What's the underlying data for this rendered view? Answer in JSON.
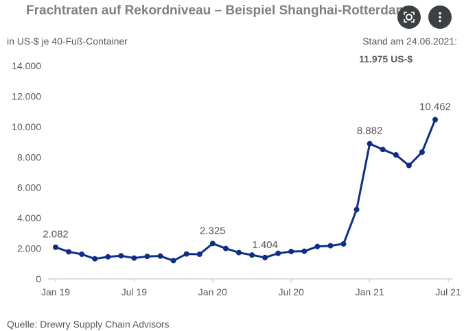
{
  "title": "Frachtraten auf Rekordniveau – Beispiel Shanghai-Rotterdam",
  "subtitle_left": "in US-$ je 40-Fuß-Container",
  "subtitle_right": "Stand am 24.06.2021:",
  "subtitle_right_value": "11.975 US-$",
  "source": "Quelle: Drewry Supply Chain Advisors",
  "colors": {
    "line": "#0d2d8a",
    "text": "#595959",
    "title": "#808080",
    "overlay_button": "#3c4043"
  },
  "icons": {
    "search": "lens-search-icon",
    "more": "more-vertical-icon"
  },
  "chart_data": {
    "type": "line",
    "ylim": [
      0,
      14000
    ],
    "yticks": [
      0,
      2000,
      4000,
      6000,
      8000,
      10000,
      12000,
      14000
    ],
    "ytick_labels": [
      "0",
      "2.000",
      "4.000",
      "6.000",
      "8.000",
      "10.000",
      "12.000",
      "14.000"
    ],
    "xtick_labels": [
      "Jan 19",
      "Jul 19",
      "Jan 20",
      "Jul 20",
      "Jan 21",
      "Jul 21"
    ],
    "grid": false,
    "series": [
      {
        "values": [
          2082,
          1780,
          1620,
          1320,
          1450,
          1520,
          1370,
          1480,
          1500,
          1200,
          1640,
          1620,
          2325,
          2000,
          1730,
          1570,
          1404,
          1680,
          1800,
          1820,
          2130,
          2180,
          2300,
          4560,
          8882,
          8500,
          8150,
          7450,
          8330,
          10462
        ]
      }
    ],
    "data_labels": [
      {
        "index": 0,
        "text": "2.082"
      },
      {
        "index": 12,
        "text": "2.325"
      },
      {
        "index": 16,
        "text": "1.404"
      },
      {
        "index": 24,
        "text": "8.882"
      },
      {
        "index": 29,
        "text": "10.462"
      }
    ]
  }
}
